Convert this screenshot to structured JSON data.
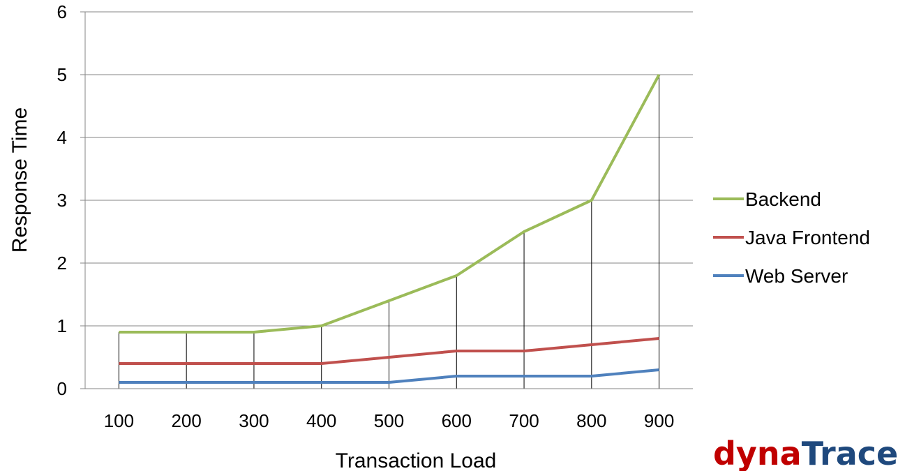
{
  "chart_data": {
    "type": "line",
    "categories": [
      "100",
      "200",
      "300",
      "400",
      "500",
      "600",
      "700",
      "800",
      "900"
    ],
    "series": [
      {
        "name": "Backend",
        "color": "#9bbb59",
        "values": [
          0.9,
          0.9,
          0.9,
          1.0,
          1.4,
          1.8,
          2.5,
          3.0,
          5.0
        ]
      },
      {
        "name": "Java Frontend",
        "color": "#c0504d",
        "values": [
          0.4,
          0.4,
          0.4,
          0.4,
          0.5,
          0.6,
          0.6,
          0.7,
          0.8
        ]
      },
      {
        "name": "Web Server",
        "color": "#4f81bd",
        "values": [
          0.1,
          0.1,
          0.1,
          0.1,
          0.1,
          0.2,
          0.2,
          0.2,
          0.3
        ]
      }
    ],
    "yticks": [
      "0",
      "1",
      "2",
      "3",
      "4",
      "5",
      "6"
    ],
    "ylim": [
      0,
      6
    ],
    "xlabel": "Transaction Load",
    "ylabel": "Response Time",
    "grid": true,
    "drop_lines": true,
    "legend": "right"
  },
  "logo": {
    "part1": "dyna",
    "part2": "Trace",
    "color1": "#c00000",
    "color2": "#1f497d"
  }
}
